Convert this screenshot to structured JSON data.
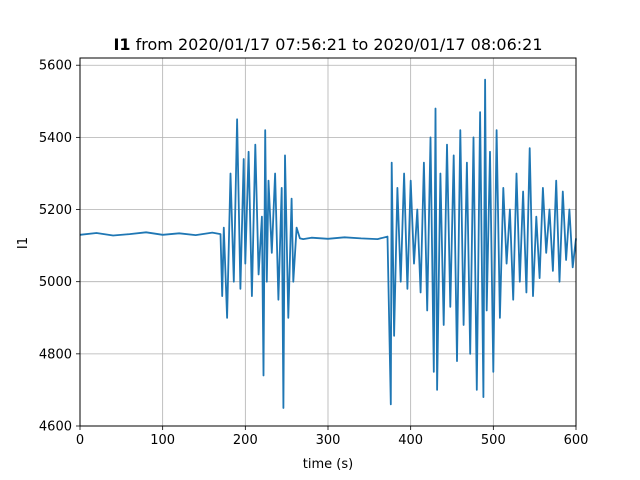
{
  "chart_data": {
    "type": "line",
    "title_var": "I1",
    "title_rest": " from 2020/01/17 07:56:21 to 2020/01/17 08:06:21",
    "xlabel": "time (s)",
    "ylabel": "I1",
    "xlim": [
      0,
      600
    ],
    "ylim": [
      4600,
      5620
    ],
    "xticks": [
      0,
      100,
      200,
      300,
      400,
      500,
      600
    ],
    "yticks": [
      4600,
      4800,
      5000,
      5200,
      5400,
      5600
    ],
    "grid": true,
    "line_color": "#1f77b4",
    "series": [
      {
        "x": [
          0,
          20,
          40,
          60,
          80,
          100,
          120,
          140,
          160,
          170,
          172,
          174,
          178,
          182,
          186,
          190,
          194,
          198,
          200,
          204,
          208,
          212,
          216,
          220,
          222,
          224,
          226,
          228,
          232,
          236,
          240,
          244,
          246,
          248,
          252,
          256,
          258,
          262,
          266,
          270,
          280,
          300,
          320,
          340,
          360,
          372,
          376,
          377,
          380,
          384,
          388,
          392,
          396,
          400,
          404,
          408,
          412,
          416,
          420,
          424,
          428,
          430,
          432,
          436,
          440,
          444,
          448,
          452,
          456,
          460,
          464,
          468,
          472,
          476,
          480,
          484,
          488,
          490,
          492,
          496,
          500,
          504,
          508,
          512,
          516,
          520,
          524,
          528,
          532,
          536,
          540,
          544,
          548,
          552,
          556,
          560,
          564,
          568,
          572,
          576,
          580,
          584,
          588,
          592,
          596,
          600
        ],
        "y": [
          5130,
          5135,
          5128,
          5132,
          5137,
          5130,
          5134,
          5129,
          5136,
          5132,
          4960,
          5150,
          4900,
          5300,
          5000,
          5450,
          4980,
          5340,
          5050,
          5360,
          4960,
          5380,
          5020,
          5180,
          4740,
          5420,
          5000,
          5280,
          5080,
          5300,
          4950,
          5260,
          4650,
          5350,
          4900,
          5230,
          5000,
          5150,
          5120,
          5118,
          5122,
          5119,
          5123,
          5120,
          5118,
          5125,
          4660,
          5330,
          4850,
          5260,
          5000,
          5300,
          4980,
          5280,
          5050,
          5200,
          4970,
          5330,
          4920,
          5400,
          4750,
          5480,
          4700,
          5300,
          4880,
          5380,
          4930,
          5350,
          4780,
          5420,
          4880,
          5330,
          4800,
          5400,
          4700,
          5470,
          4680,
          5560,
          4920,
          5360,
          4750,
          5420,
          4900,
          5260,
          5050,
          5200,
          4950,
          5300,
          5000,
          5250,
          4970,
          5370,
          4960,
          5180,
          5010,
          5260,
          5080,
          5200,
          5030,
          5280,
          5000,
          5250,
          5060,
          5200,
          5040,
          5120
        ]
      }
    ]
  }
}
